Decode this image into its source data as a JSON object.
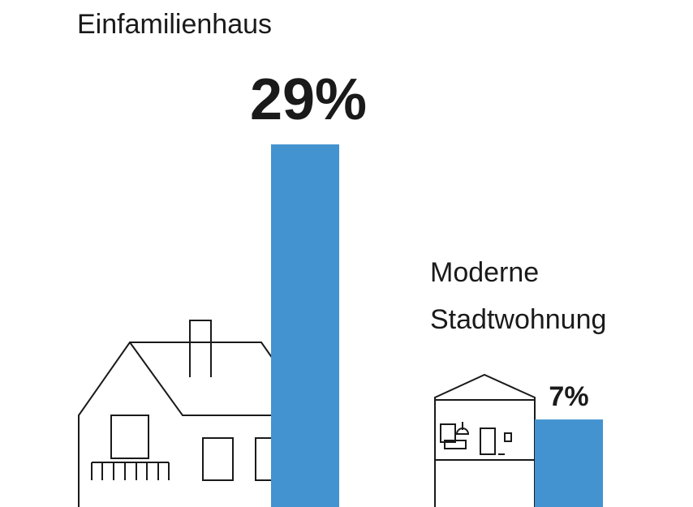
{
  "chart_data": {
    "type": "bar",
    "categories": [
      "Einfamilienhaus",
      "Moderne Stadtwohnung"
    ],
    "values": [
      29,
      7
    ],
    "value_labels": [
      "29%",
      "7%"
    ],
    "color": "#4393d0",
    "ylim": [
      0,
      29
    ]
  }
}
